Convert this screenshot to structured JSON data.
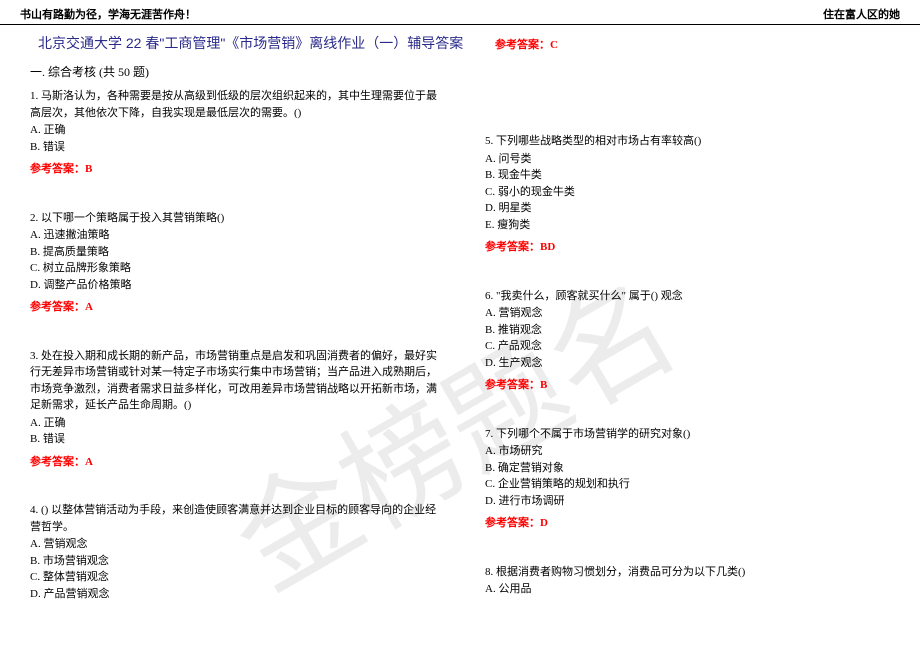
{
  "watermark_text": "金榜题名",
  "header": {
    "left": "书山有路勤为径，学海无涯苦作舟！",
    "right": "住在富人区的她"
  },
  "title": "北京交通大学 22 春\"工商管理\"《市场营销》离线作业（一）辅导答案",
  "section_heading": "一. 综合考核 (共 50 题)",
  "answer_label": "参考答案：",
  "left_questions": [
    {
      "num": "1",
      "stem": "1. 马斯洛认为，各种需要是按从高级到低级的层次组织起来的，其中生理需要位于最高层次，其他依次下降，自我实现是最低层次的需要。()",
      "options": [
        "A. 正确",
        "B. 错误"
      ],
      "answer": "B"
    },
    {
      "num": "2",
      "stem": "2. 以下哪一个策略属于投入其营销策略()",
      "options": [
        "A. 迅速撇油策略",
        "B. 提高质量策略",
        "C. 树立品牌形象策略",
        "D. 调整产品价格策略"
      ],
      "answer": "A"
    },
    {
      "num": "3",
      "stem": "3. 处在投入期和成长期的新产品，市场营销重点是启发和巩固消费者的偏好，最好实行无差异市场营销或针对某一特定子市场实行集中市场营销；当产品进入成熟期后，市场竞争激烈，消费者需求日益多样化，可改用差异市场营销战略以开拓新市场，满足新需求，延长产品生命周期。()",
      "options": [
        "A. 正确",
        "B. 错误"
      ],
      "answer": "A"
    },
    {
      "num": "4",
      "stem": "4. () 以整体营销活动为手段，来创造使顾客满意并达到企业目标的顾客导向的企业经营哲学。",
      "options": [
        "A. 营销观念",
        "B. 市场营销观念",
        "C. 整体营销观念",
        "D. 产品营销观念"
      ],
      "answer": ""
    }
  ],
  "right_top_answer": "C",
  "right_questions": [
    {
      "num": "5",
      "stem": "5. 下列哪些战略类型的相对市场占有率较高()",
      "options": [
        "A. 问号类",
        "B. 现金牛类",
        "C. 弱小的现金牛类",
        "D. 明星类",
        "E. 瘦狗类"
      ],
      "answer": "BD"
    },
    {
      "num": "6",
      "stem": "6. \"我卖什么，顾客就买什么\" 属于() 观念",
      "options": [
        "A. 营销观念",
        "B. 推销观念",
        "C. 产品观念",
        "D. 生产观念"
      ],
      "answer": "B"
    },
    {
      "num": "7",
      "stem": "7. 下列哪个不属于市场营销学的研究对象()",
      "options": [
        "A. 市场研究",
        "B. 确定营销对象",
        "C. 企业营销策略的规划和执行",
        "D. 进行市场调研"
      ],
      "answer": "D"
    },
    {
      "num": "8",
      "stem": "8. 根据消费者购物习惯划分，消费品可分为以下几类()",
      "options": [
        "A. 公用品"
      ],
      "answer": ""
    }
  ]
}
